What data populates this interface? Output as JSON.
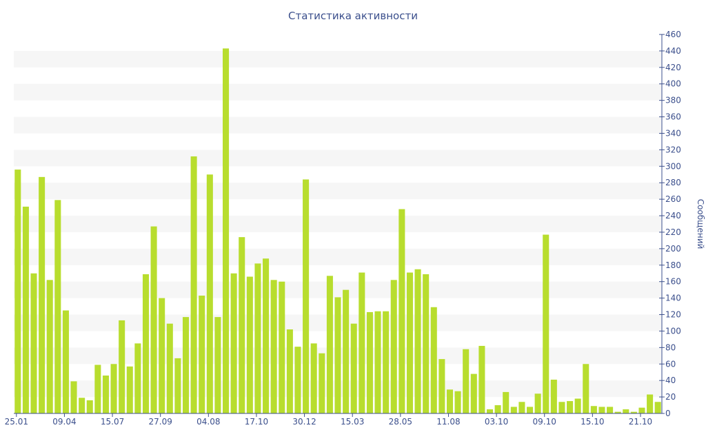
{
  "chart_data": {
    "type": "bar",
    "title": "Статистика активности",
    "ylabel": "Сообщений",
    "xlabel": "",
    "ylim": [
      0,
      460
    ],
    "ytick_step": 20,
    "y_axis_side": "right",
    "grid": "alternating horizontal bands",
    "x_tick_labels": [
      "25.01",
      "09.04",
      "15.07",
      "27.09",
      "04.08",
      "17.10",
      "30.12",
      "15.03",
      "28.05",
      "11.08",
      "03.10",
      "09.10",
      "15.10",
      "21.10"
    ],
    "x_tick_bar_index": [
      0,
      6,
      12,
      18,
      24,
      30,
      36,
      42,
      48,
      54,
      60,
      66,
      72,
      78
    ],
    "values": [
      296,
      251,
      170,
      287,
      162,
      259,
      125,
      39,
      19,
      16,
      59,
      46,
      60,
      113,
      57,
      85,
      169,
      227,
      140,
      109,
      67,
      117,
      312,
      143,
      290,
      117,
      443,
      170,
      214,
      166,
      182,
      188,
      162,
      160,
      102,
      81,
      284,
      85,
      73,
      167,
      141,
      150,
      109,
      171,
      123,
      124,
      124,
      162,
      248,
      171,
      175,
      169,
      129,
      66,
      29,
      27,
      78,
      48,
      82,
      5,
      10,
      26,
      8,
      14,
      8,
      24,
      217,
      41,
      14,
      15,
      18,
      60,
      9,
      8,
      8,
      2,
      5,
      2,
      7,
      23,
      14
    ],
    "colors": {
      "bar": "#b8dd2e",
      "band": "#f6f6f6",
      "axis": "#3b4f8c",
      "text": "#3b4f8c"
    }
  }
}
